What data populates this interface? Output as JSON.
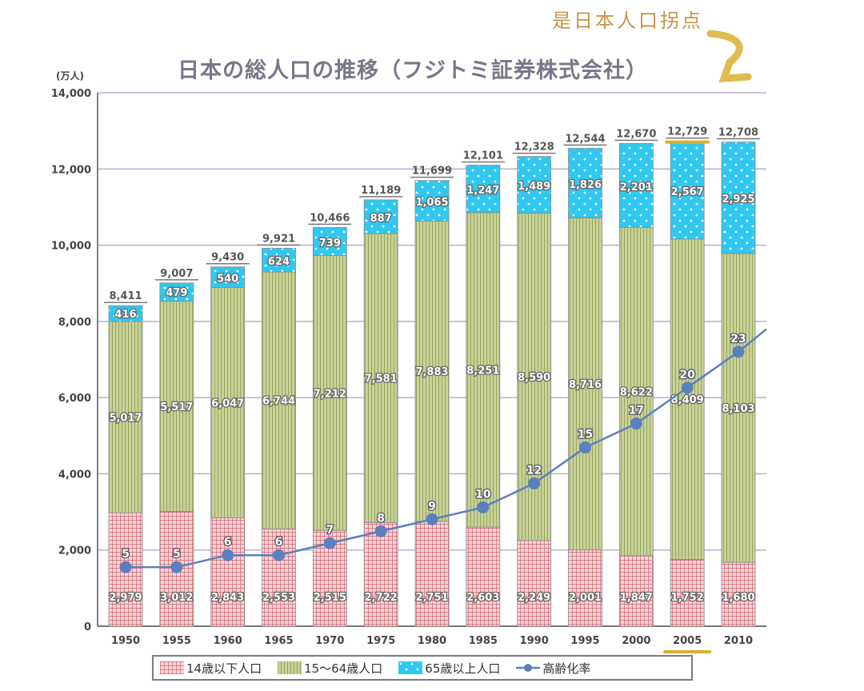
{
  "title": "日本の総人口の推移（フジトミ証券株式会社）",
  "annotation": "是日本人口拐点",
  "colors": {
    "under14": "#e8a0a8",
    "age15_64": "#a8b870",
    "over65": "#30c8f0",
    "rate_line": "#5a80c0",
    "highlight": "#d8b030",
    "title": "#77778a",
    "grid": "#b8b0d0"
  },
  "chart_data": {
    "type": "bar",
    "stacked": true,
    "title": "日本の総人口の推移（フジトミ証券株式会社）",
    "ylabel": "(万人)",
    "ylim": [
      0,
      14000
    ],
    "yticks": [
      "0",
      "2,000",
      "4,000",
      "6,000",
      "8,000",
      "10,000",
      "12,000",
      "14,000"
    ],
    "grid": true,
    "legend_position": "bottom",
    "categories": [
      "1950",
      "1955",
      "1960",
      "1965",
      "1970",
      "1975",
      "1980",
      "1985",
      "1990",
      "1995",
      "2000",
      "2005",
      "2010"
    ],
    "series": [
      {
        "name": "14歳以下人口",
        "values": [
          2979,
          3012,
          2843,
          2553,
          2515,
          2722,
          2751,
          2603,
          2249,
          2001,
          1847,
          1752,
          1680
        ],
        "labels": [
          "2,979",
          "3,012",
          "2,843",
          "2,553",
          "2,515",
          "2,722",
          "2,751",
          "2,603",
          "2,249",
          "2,001",
          "1,847",
          "1,752",
          "1,680"
        ]
      },
      {
        "name": "15～64歳人口",
        "values": [
          5017,
          5517,
          6047,
          6744,
          7212,
          7581,
          7883,
          8251,
          8590,
          8716,
          8622,
          8409,
          8103
        ],
        "labels": [
          "5,017",
          "5,517",
          "6,047",
          "6,744",
          "7,212",
          "7,581",
          "7,883",
          "8,251",
          "8,590",
          "8,716",
          "8,622",
          "8,409",
          "8,103"
        ]
      },
      {
        "name": "65歳以上人口",
        "values": [
          416,
          479,
          540,
          624,
          739,
          887,
          1065,
          1247,
          1489,
          1826,
          2201,
          2567,
          2925
        ],
        "labels": [
          "416",
          "479",
          "540",
          "624",
          "739",
          "887",
          "1,065",
          "1,247",
          "1,489",
          "1,826",
          "2,201",
          "2,567",
          "2,925"
        ]
      }
    ],
    "totals": [
      "8,411",
      "9,007",
      "9,430",
      "9,921",
      "10,466",
      "11,189",
      "11,699",
      "12,101",
      "12,328",
      "12,544",
      "12,670",
      "12,729",
      "12,708"
    ],
    "line_series": {
      "name": "高齢化率",
      "values": [
        5,
        5,
        6,
        6,
        7,
        8,
        9,
        10,
        12,
        15,
        17,
        20,
        23
      ]
    },
    "highlighted_category": "2005"
  }
}
